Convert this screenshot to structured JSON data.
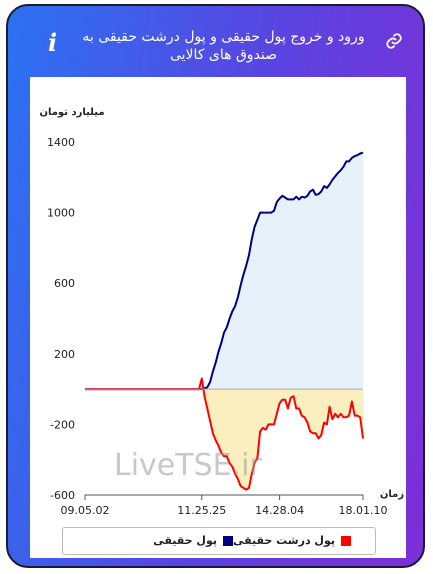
{
  "header": {
    "title": "ورود و خروج پول حقیقی و پول درشت حقیقی به صندوق های کالایی",
    "info_icon": "i",
    "link_icon": "link-icon"
  },
  "watermark": "LiveTSE.ir",
  "colors": {
    "real_money": "#000080",
    "large_real_money": "#ff0000",
    "area_positive": "#e6f1fa",
    "area_negative": "#fbefbf"
  },
  "chart_data": {
    "type": "line",
    "ylabel": "میلیارد تومان",
    "xlabel": "زمان",
    "ylim": [
      -600,
      1400
    ],
    "yticks": [
      1400,
      1000,
      600,
      200,
      -200,
      -600
    ],
    "xticks": [
      {
        "label": "09.05.02",
        "index": 0
      },
      {
        "label": "11.25.25",
        "index": 42
      },
      {
        "label": "14.28.04",
        "index": 70
      },
      {
        "label": "18.01.10",
        "index": 100
      }
    ],
    "x_count": 101,
    "grid": false,
    "legend_position": "bottom",
    "series": [
      {
        "name": "پول حقیقی",
        "color": "#000080",
        "values": [
          0,
          0,
          0,
          0,
          0,
          0,
          0,
          0,
          0,
          0,
          0,
          0,
          0,
          0,
          0,
          0,
          0,
          0,
          0,
          0,
          0,
          0,
          0,
          0,
          0,
          0,
          0,
          0,
          0,
          0,
          0,
          0,
          0,
          0,
          0,
          0,
          0,
          0,
          0,
          0,
          0,
          0,
          0,
          5,
          10,
          40,
          100,
          150,
          210,
          260,
          320,
          350,
          400,
          440,
          470,
          520,
          590,
          650,
          700,
          760,
          850,
          920,
          960,
          1000,
          1000,
          1000,
          1000,
          1000,
          1010,
          1060,
          1080,
          1095,
          1085,
          1075,
          1075,
          1075,
          1090,
          1075,
          1090,
          1085,
          1095,
          1120,
          1130,
          1100,
          1105,
          1120,
          1150,
          1140,
          1160,
          1185,
          1205,
          1225,
          1240,
          1260,
          1290,
          1290,
          1310,
          1320,
          1325,
          1335,
          1340
        ]
      },
      {
        "name": "پول درشت حقیقی",
        "color": "#ff0000",
        "values": [
          0,
          0,
          0,
          0,
          0,
          0,
          0,
          0,
          0,
          0,
          0,
          0,
          0,
          0,
          0,
          0,
          0,
          0,
          0,
          0,
          0,
          0,
          0,
          0,
          0,
          0,
          0,
          0,
          0,
          0,
          0,
          0,
          0,
          0,
          0,
          0,
          0,
          0,
          0,
          0,
          0,
          0,
          60,
          -40,
          -110,
          -180,
          -250,
          -290,
          -320,
          -360,
          -380,
          -380,
          -420,
          -440,
          -480,
          -510,
          -550,
          -560,
          -570,
          -560,
          -480,
          -420,
          -390,
          -240,
          -220,
          -230,
          -200,
          -200,
          -200,
          -140,
          -80,
          -60,
          -60,
          -110,
          -50,
          -40,
          -110,
          -110,
          -150,
          -160,
          -190,
          -240,
          -250,
          -250,
          -280,
          -260,
          -190,
          -200,
          -100,
          -170,
          -140,
          -160,
          -140,
          -160,
          -160,
          -150,
          -70,
          -150,
          -150,
          -160,
          -280
        ]
      }
    ]
  }
}
